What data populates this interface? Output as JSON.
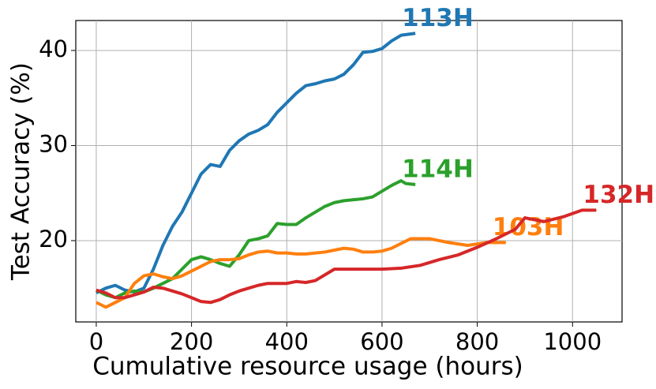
{
  "chart_data": {
    "type": "line",
    "x_label": "Cumulative resource usage (hours)",
    "y_label": "Test Accuracy (%)",
    "xlim": [
      -43,
      1104
    ],
    "ylim": [
      11.45,
      43.15
    ],
    "xticks": [
      0,
      200,
      400,
      600,
      800,
      1000
    ],
    "yticks": [
      20,
      30,
      40
    ],
    "grid": true,
    "series": [
      {
        "name": "113H",
        "color": "#1f77b4",
        "x": [
          0,
          20,
          40,
          60,
          80,
          100,
          120,
          140,
          160,
          180,
          200,
          220,
          240,
          260,
          280,
          300,
          320,
          340,
          360,
          380,
          400,
          420,
          440,
          460,
          480,
          500,
          520,
          540,
          560,
          580,
          600,
          620,
          640,
          670
        ],
        "values": [
          14.5,
          15,
          15.3,
          14.8,
          14.6,
          15,
          17,
          19.5,
          21.5,
          23,
          25,
          27,
          28,
          27.8,
          29.5,
          30.5,
          31.2,
          31.6,
          32.2,
          33.5,
          34.5,
          35.5,
          36.3,
          36.5,
          36.8,
          37,
          37.5,
          38.5,
          39.8,
          39.9,
          40.2,
          41,
          41.6,
          41.8
        ]
      },
      {
        "name": "114H",
        "color": "#2ca02c",
        "x": [
          0,
          20,
          40,
          60,
          80,
          100,
          120,
          140,
          160,
          180,
          200,
          220,
          240,
          260,
          280,
          300,
          320,
          340,
          360,
          380,
          400,
          420,
          440,
          460,
          480,
          500,
          520,
          540,
          560,
          580,
          600,
          620,
          640,
          650,
          670
        ],
        "values": [
          14.8,
          14.3,
          14,
          14.5,
          14.7,
          14.6,
          15,
          15.5,
          16,
          17,
          18,
          18.3,
          18,
          17.6,
          17.3,
          18.5,
          20,
          20.2,
          20.5,
          21.8,
          21.7,
          21.7,
          22.4,
          23,
          23.6,
          24,
          24.2,
          24.3,
          24.4,
          24.6,
          25.2,
          25.8,
          26.3,
          26,
          25.9
        ]
      },
      {
        "name": "103H",
        "color": "#ff7f0e",
        "x": [
          0,
          20,
          40,
          60,
          80,
          100,
          120,
          140,
          160,
          180,
          200,
          220,
          240,
          260,
          280,
          300,
          320,
          340,
          360,
          380,
          400,
          420,
          440,
          460,
          480,
          500,
          520,
          540,
          560,
          580,
          600,
          620,
          640,
          660,
          700,
          740,
          780,
          820,
          860
        ],
        "values": [
          13.5,
          13,
          13.5,
          14,
          15.5,
          16.3,
          16.5,
          16.2,
          16,
          16.3,
          16.8,
          17.3,
          17.8,
          18,
          18,
          18.1,
          18.5,
          18.8,
          18.9,
          18.7,
          18.7,
          18.6,
          18.6,
          18.7,
          18.8,
          19,
          19.2,
          19.1,
          18.8,
          18.8,
          18.9,
          19.2,
          19.7,
          20.2,
          20.2,
          19.8,
          19.5,
          19.8,
          19.8
        ]
      },
      {
        "name": "132H",
        "color": "#d62728",
        "x": [
          0,
          20,
          40,
          60,
          80,
          100,
          120,
          140,
          160,
          180,
          200,
          220,
          240,
          260,
          280,
          300,
          320,
          340,
          360,
          380,
          400,
          420,
          440,
          460,
          480,
          500,
          520,
          540,
          560,
          600,
          640,
          680,
          720,
          760,
          800,
          840,
          880,
          900,
          940,
          980,
          1020,
          1050
        ],
        "values": [
          14.8,
          14.5,
          14,
          14,
          14.3,
          14.6,
          15.1,
          15,
          14.7,
          14.4,
          14,
          13.6,
          13.5,
          13.8,
          14.3,
          14.7,
          15,
          15.3,
          15.5,
          15.5,
          15.5,
          15.7,
          15.6,
          15.8,
          16.4,
          17,
          17,
          17,
          17,
          17,
          17.1,
          17.4,
          18,
          18.5,
          19.3,
          20.2,
          21.2,
          22.4,
          22,
          22.5,
          23.2,
          23.2
        ]
      }
    ]
  }
}
